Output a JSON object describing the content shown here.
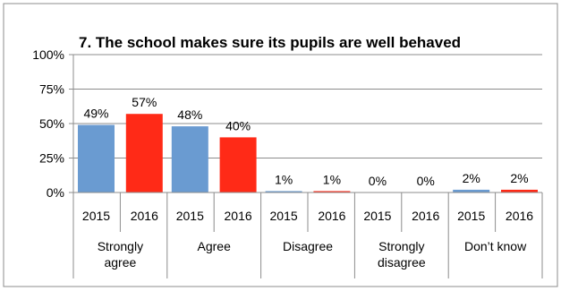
{
  "chart_data": {
    "type": "bar",
    "title": "7. The school makes sure its pupils are well behaved",
    "xlabel": "",
    "ylabel": "",
    "ylim": [
      0,
      100
    ],
    "y_ticks": [
      "0%",
      "25%",
      "50%",
      "75%",
      "100%"
    ],
    "y_tick_values": [
      0,
      25,
      50,
      75,
      100
    ],
    "grid": true,
    "legend": "none",
    "groups": [
      {
        "label_lines": [
          "Strongly",
          "agree"
        ],
        "subcategories": [
          "2015",
          "2016"
        ],
        "values": [
          49,
          57
        ],
        "data_labels": [
          "49%",
          "57%"
        ]
      },
      {
        "label_lines": [
          "Agree"
        ],
        "subcategories": [
          "2015",
          "2016"
        ],
        "values": [
          48,
          40
        ],
        "data_labels": [
          "48%",
          "40%"
        ]
      },
      {
        "label_lines": [
          "Disagree"
        ],
        "subcategories": [
          "2015",
          "2016"
        ],
        "values": [
          1,
          1
        ],
        "data_labels": [
          "1%",
          "1%"
        ]
      },
      {
        "label_lines": [
          "Strongly",
          "disagree"
        ],
        "subcategories": [
          "2015",
          "2016"
        ],
        "values": [
          0,
          0
        ],
        "data_labels": [
          "0%",
          "0%"
        ]
      },
      {
        "label_lines": [
          "Don’t know"
        ],
        "subcategories": [
          "2015",
          "2016"
        ],
        "values": [
          2,
          2
        ],
        "data_labels": [
          "2%",
          "2%"
        ]
      }
    ],
    "colors": {
      "2015": "#6a9bd1",
      "2016": "#ff2a17"
    }
  }
}
